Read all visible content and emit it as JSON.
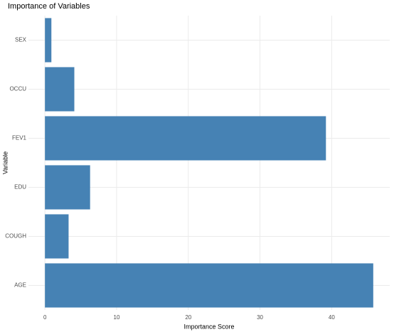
{
  "chart_data": {
    "type": "bar",
    "orientation": "horizontal",
    "title": "Importance of Variables",
    "x_label": "Importance Score",
    "y_label": "Variable",
    "categories": [
      "SEX",
      "OCCU",
      "FEV1",
      "EDU",
      "COUGH",
      "AGE"
    ],
    "values": [
      0.9,
      4.1,
      39.2,
      6.3,
      3.3,
      45.8
    ],
    "color": "#4682b4",
    "xlim": [
      -2.3,
      48.1
    ],
    "xticks": [
      0,
      10,
      20,
      30,
      40
    ],
    "grid": true
  }
}
